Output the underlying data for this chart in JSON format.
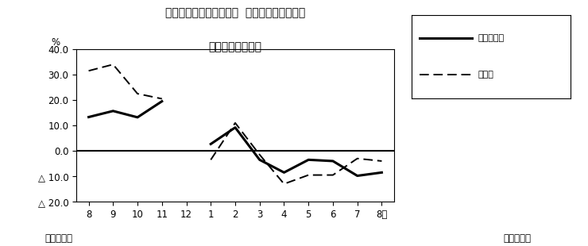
{
  "title_line1": "第２図　所定外労働時間  対前年同月比の推移",
  "title_line2": "（規模５人以上）",
  "x_labels": [
    "8",
    "9",
    "10",
    "11",
    "12",
    "1",
    "2",
    "3",
    "4",
    "5",
    "6",
    "7",
    "8月"
  ],
  "solid_label": "調査産業計",
  "dashed_label": "製造業",
  "solid_values": [
    13.3,
    15.7,
    13.2,
    19.5,
    null,
    2.7,
    9.2,
    -3.5,
    -8.5,
    -3.5,
    -4.0,
    -9.8,
    -8.5
  ],
  "dashed_values": [
    31.5,
    34.0,
    22.5,
    20.5,
    null,
    -3.5,
    11.0,
    -1.5,
    -13.0,
    -9.5,
    -9.5,
    -3.0,
    -4.0
  ],
  "ylim": [
    -20.0,
    40.0
  ],
  "yticks": [
    40.0,
    30.0,
    20.0,
    10.0,
    0.0,
    -10.0,
    -20.0
  ],
  "ytick_labels": [
    "40.0",
    "30.0",
    "20.0",
    "10.0",
    "0.0",
    "△ 10.0",
    "△ 20.0"
  ],
  "ylabel": "%",
  "footer_left": "平成２２年",
  "footer_right": "平成２３年",
  "bg_color": "#ffffff",
  "line_color": "#000000"
}
